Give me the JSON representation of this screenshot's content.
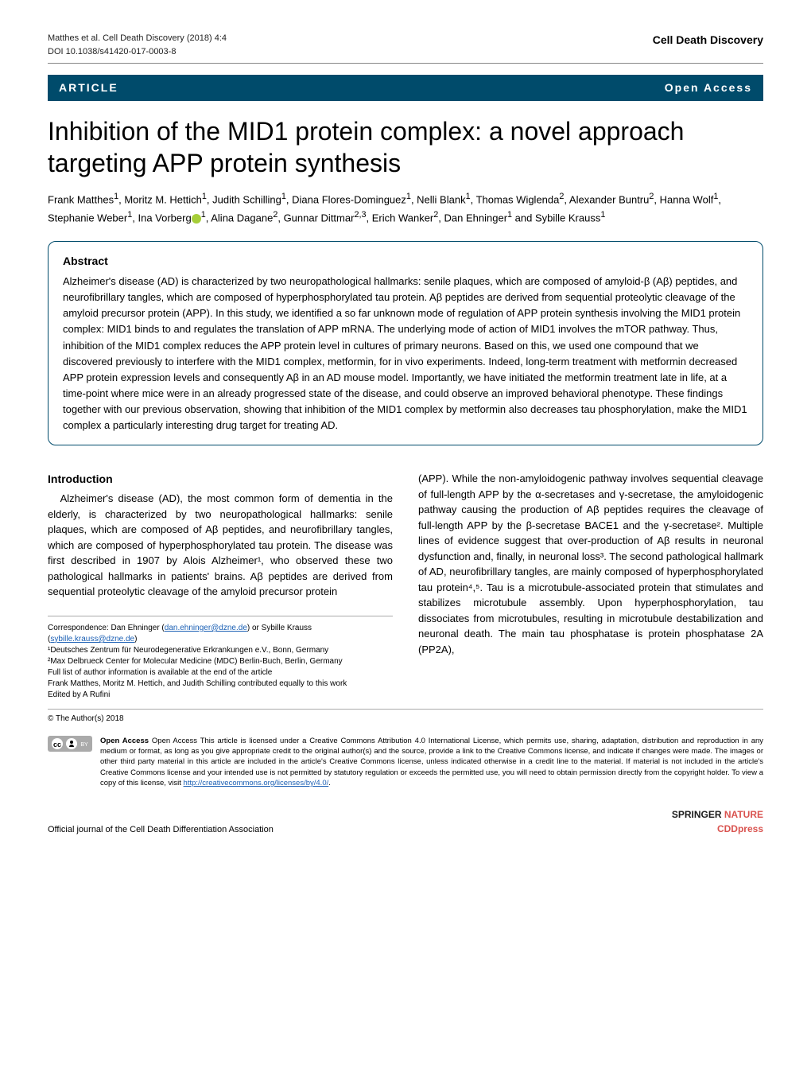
{
  "header": {
    "citation_left": "Matthes et al. Cell Death Discovery   (2018) 4:4",
    "doi": "DOI 10.1038/s41420-017-0003-8",
    "journal": "Cell Death Discovery"
  },
  "banner": {
    "left": "ARTICLE",
    "right": "Open Access"
  },
  "title": "Inhibition of the MID1 protein complex: a novel approach targeting APP protein synthesis",
  "authors_html": "Frank Matthes<sup>1</sup>, Moritz M. Hettich<sup>1</sup>, Judith Schilling<sup>1</sup>, Diana Flores-Dominguez<sup>1</sup>, Nelli Blank<sup>1</sup>, Thomas Wiglenda<sup>2</sup>, Alexander Buntru<sup>2</sup>, Hanna Wolf<sup>1</sup>, Stephanie Weber<sup>1</sup>, Ina Vorberg<span class='orcid'></span><sup>1</sup>, Alina Dagane<sup>2</sup>, Gunnar Dittmar<sup>2,3</sup>, Erich Wanker<sup>2</sup>, Dan Ehninger<sup>1</sup> and Sybille Krauss<sup>1</sup>",
  "abstract": {
    "heading": "Abstract",
    "text": "Alzheimer's disease (AD) is characterized by two neuropathological hallmarks: senile plaques, which are composed of amyloid-β (Aβ) peptides, and neurofibrillary tangles, which are composed of hyperphosphorylated tau protein. Aβ peptides are derived from sequential proteolytic cleavage of the amyloid precursor protein (APP). In this study, we identified a so far unknown mode of regulation of APP protein synthesis involving the MID1 protein complex: MID1 binds to and regulates the translation of APP mRNA. The underlying mode of action of MID1 involves the mTOR pathway. Thus, inhibition of the MID1 complex reduces the APP protein level in cultures of primary neurons. Based on this, we used one compound that we discovered previously to interfere with the MID1 complex, metformin, for in vivo experiments. Indeed, long-term treatment with metformin decreased APP protein expression levels and consequently Aβ in an AD mouse model. Importantly, we have initiated the metformin treatment late in life, at a time-point where mice were in an already progressed state of the disease, and could observe an improved behavioral phenotype. These findings together with our previous observation, showing that inhibition of the MID1 complex by metformin also decreases tau phosphorylation, make the MID1 complex a particularly interesting drug target for treating AD."
  },
  "intro": {
    "heading": "Introduction",
    "col1": "Alzheimer's disease (AD), the most common form of dementia in the elderly, is characterized by two neuropathological hallmarks: senile plaques, which are composed of Aβ peptides, and neurofibrillary tangles, which are composed of hyperphosphorylated tau protein. The disease was first described in 1907 by Alois Alzheimer¹, who observed these two pathological hallmarks in patients' brains. Aβ peptides are derived from sequential proteolytic cleavage of the amyloid precursor protein",
    "col2": "(APP). While the non-amyloidogenic pathway involves sequential cleavage of full-length APP by the α-secretases and γ-secretase, the amyloidogenic pathway causing the production of Aβ peptides requires the cleavage of full-length APP by the β-secretase BACE1 and the γ-secretase². Multiple lines of evidence suggest that over-production of Aβ results in neuronal dysfunction and, finally, in neuronal loss³. The second pathological hallmark of AD, neurofibrillary tangles, are mainly composed of hyperphosphorylated tau protein⁴,⁵. Tau is a microtubule-associated protein that stimulates and stabilizes microtubule assembly. Upon hyperphosphorylation, tau dissociates from microtubules, resulting in microtubule destabilization and neuronal death. The main tau phosphatase is protein phosphatase 2A (PP2A),"
  },
  "footnotes": {
    "corr_label": "Correspondence: Dan Ehninger (",
    "email1": "dan.ehninger@dzne.de",
    "or": ") or Sybille Krauss",
    "email2": "sybille.krauss@dzne.de",
    "aff1": "¹Deutsches Zentrum für Neurodegenerative Erkrankungen e.V., Bonn, Germany",
    "aff2": "²Max Delbrueck Center for Molecular Medicine (MDC) Berlin-Buch, Berlin, Germany",
    "full": "Full list of author information is available at the end of the article",
    "equal": "Frank Matthes, Moritz M. Hettich, and Judith Schilling contributed equally to this work",
    "edited": "Edited by A Rufini"
  },
  "license": {
    "copyright": "© The Author(s) 2018",
    "text": "Open Access This article is licensed under a Creative Commons Attribution 4.0 International License, which permits use, sharing, adaptation, distribution and reproduction in any medium or format, as long as you give appropriate credit to the original author(s) and the source, provide a link to the Creative Commons license, and indicate if changes were made. The images or other third party material in this article are included in the article's Creative Commons license, unless indicated otherwise in a credit line to the material. If material is not included in the article's Creative Commons license and your intended use is not permitted by statutory regulation or exceeds the permitted use, you will need to obtain permission directly from the copyright holder. To view a copy of this license, visit ",
    "url": "http://creativecommons.org/licenses/by/4.0/"
  },
  "footer": {
    "left": "Official journal of the Cell Death Differentiation Association",
    "brand_top": "SPRINGER NATURE",
    "brand_bottom": "CDDpress"
  }
}
